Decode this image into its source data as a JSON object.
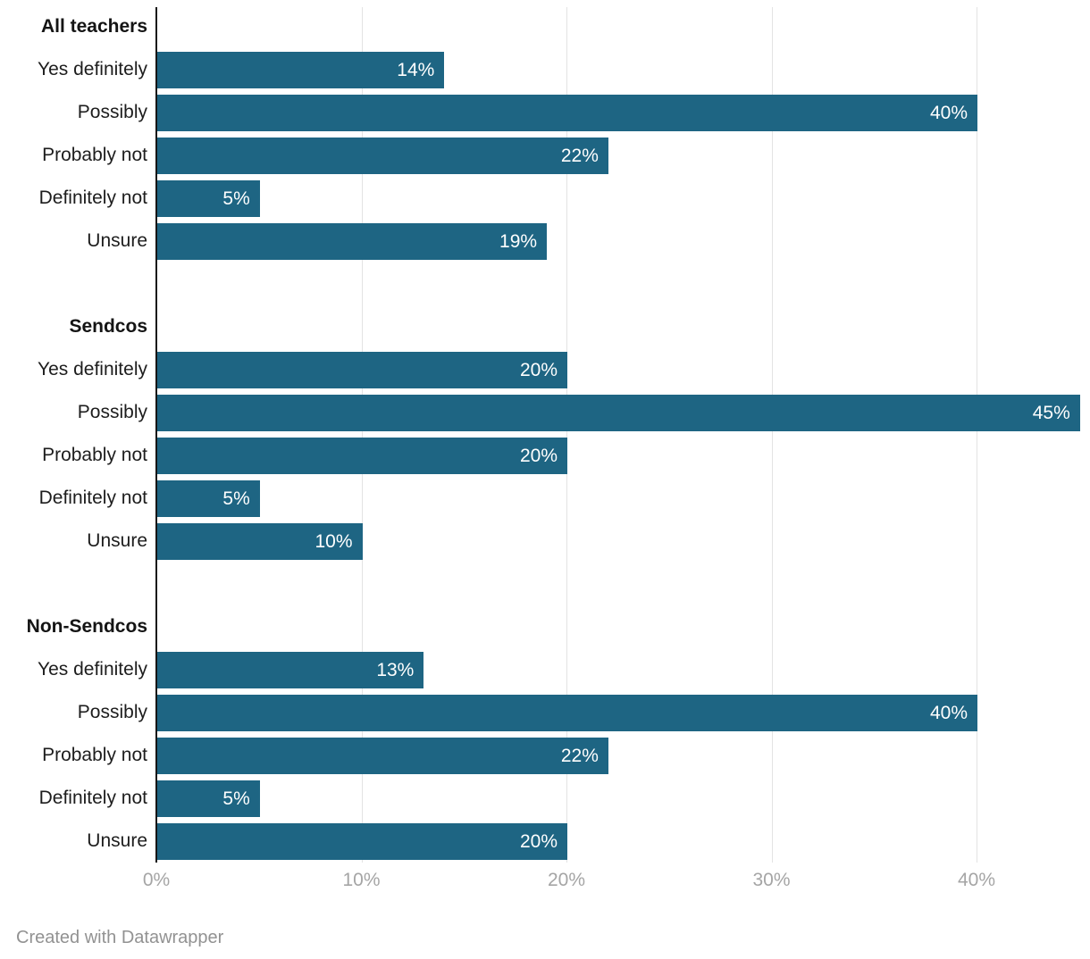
{
  "chart_data": {
    "type": "bar",
    "orientation": "horizontal",
    "unit": "%",
    "bar_color": "#1e6583",
    "grid": true,
    "axis": {
      "ticks": [
        0,
        10,
        20,
        30,
        40
      ],
      "tick_labels": [
        "0%",
        "10%",
        "20%",
        "30%",
        "40%"
      ],
      "xlim": [
        0,
        45
      ]
    },
    "groups": [
      {
        "label": "All teachers",
        "categories": [
          "Yes definitely",
          "Possibly",
          "Probably not",
          "Definitely not",
          "Unsure"
        ],
        "values": [
          14,
          40,
          22,
          5,
          19
        ],
        "value_labels": [
          "14%",
          "40%",
          "22%",
          "5%",
          "19%"
        ]
      },
      {
        "label": "Sendcos",
        "categories": [
          "Yes definitely",
          "Possibly",
          "Probably not",
          "Definitely not",
          "Unsure"
        ],
        "values": [
          20,
          45,
          20,
          5,
          10
        ],
        "value_labels": [
          "20%",
          "45%",
          "20%",
          "5%",
          "10%"
        ]
      },
      {
        "label": "Non-Sendcos",
        "categories": [
          "Yes definitely",
          "Possibly",
          "Probably not",
          "Definitely not",
          "Unsure"
        ],
        "values": [
          13,
          40,
          22,
          5,
          20
        ],
        "value_labels": [
          "13%",
          "40%",
          "22%",
          "5%",
          "20%"
        ]
      }
    ]
  },
  "footer": {
    "credit": "Created with Datawrapper"
  },
  "colors": {
    "bar": "#1e6583",
    "axis_line": "#161616",
    "gridline": "#e3e3e3",
    "tick_text": "#a5a5a5",
    "label_text": "#1d1d1d",
    "value_text": "#ffffff",
    "credit_text": "#929292"
  }
}
